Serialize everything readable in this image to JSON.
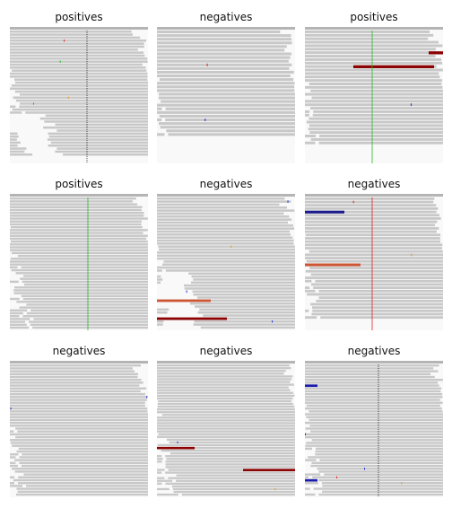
{
  "panels": [
    {
      "title": "positives"
    },
    {
      "title": "negatives"
    },
    {
      "title": "positives"
    },
    {
      "title": "positives"
    },
    {
      "title": "negatives"
    },
    {
      "title": "negatives"
    },
    {
      "title": "negatives"
    },
    {
      "title": "negatives"
    },
    {
      "title": "negatives"
    }
  ],
  "colors": {
    "read": "#c8c8c8",
    "coverage_bar": "#b4b4b4",
    "background": "#f9f9f9",
    "mismatch_red": "#dd2222",
    "mismatch_green": "#22bb22",
    "mismatch_blue": "#2233cc",
    "mismatch_orange": "#dd9922",
    "deletion_black": "#222222",
    "insert_dark_red": "#8b0000",
    "insert_orange": "#cc5533",
    "insert_navy": "#1a1a8a",
    "insert_blue": "#1a1aaa"
  }
}
